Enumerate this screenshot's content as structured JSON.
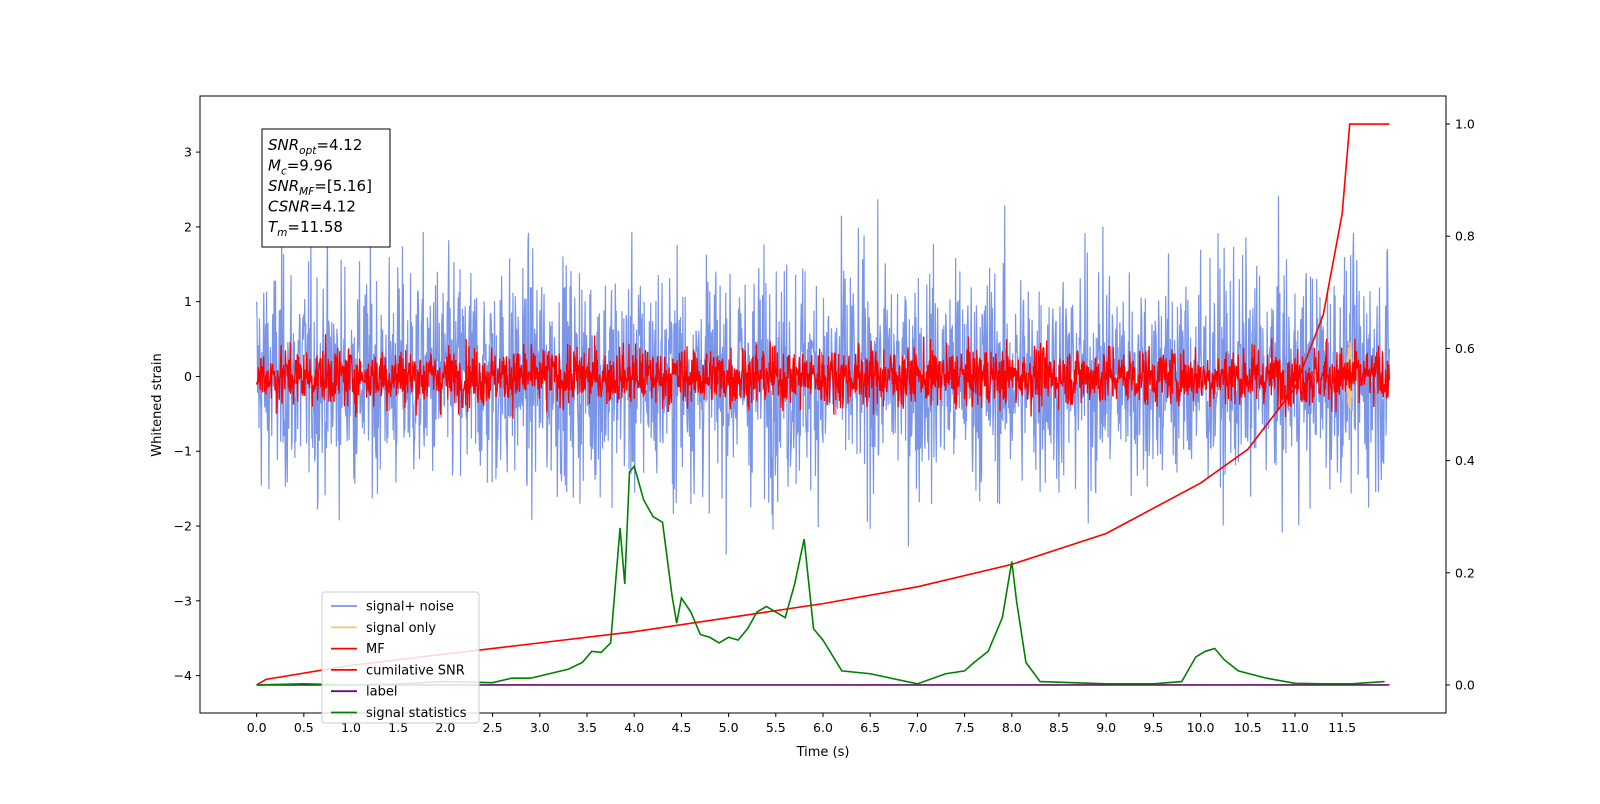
{
  "chart_data": {
    "type": "line",
    "xlabel": "Time (s)",
    "ylabel": "Whitened strain",
    "xlim": [
      -0.6,
      12.6
    ],
    "ylim": [
      -4.5,
      3.75
    ],
    "y2lim": [
      -0.05,
      1.05
    ],
    "x_ticks": [
      "0.0",
      "0.5",
      "1.0",
      "1.5",
      "2.0",
      "2.5",
      "3.0",
      "3.5",
      "4.0",
      "4.5",
      "5.0",
      "5.5",
      "6.0",
      "6.5",
      "7.0",
      "7.5",
      "8.0",
      "8.5",
      "9.0",
      "9.5",
      "10.0",
      "10.5",
      "11.0",
      "11.5"
    ],
    "y_ticks": [
      "3",
      "2",
      "1",
      "0",
      "−1",
      "−2",
      "−3",
      "−4"
    ],
    "y_tick_values": [
      3,
      2,
      1,
      0,
      -1,
      -2,
      -3,
      -4
    ],
    "y2_ticks": [
      "1.0",
      "0.8",
      "0.6",
      "0.4",
      "0.2",
      "0.0"
    ],
    "y2_tick_values": [
      1.0,
      0.8,
      0.6,
      0.4,
      0.2,
      0.0
    ],
    "grid": false,
    "legend_position": "lower-left",
    "annotation": [
      {
        "base": "SNR",
        "sub": "opt",
        "rest": "=4.12"
      },
      {
        "base": "M",
        "sub": "c",
        "rest": "=9.96"
      },
      {
        "base": "SNR",
        "sub": "MF",
        "rest": "=[5.16]"
      },
      {
        "base": "CSNR",
        "sub": "",
        "rest": "=4.12"
      },
      {
        "base": "T",
        "sub": "m",
        "rest": "=11.58"
      }
    ],
    "series": [
      {
        "name": "signal+ noise",
        "color": "#7b96e8",
        "axis": "left",
        "style": "noise",
        "x_range": [
          0.0,
          12.0
        ],
        "level": 0.0,
        "amplitude": 3.4
      },
      {
        "name": "signal only",
        "color": "#f5c97a",
        "axis": "left",
        "style": "chirp",
        "x_range": [
          11.5,
          11.6
        ],
        "peak_time": 11.58
      },
      {
        "name": "MF",
        "color": "#ff0000",
        "axis": "left",
        "style": "noise",
        "x_range": [
          0.0,
          12.0
        ],
        "level": 0.0,
        "amplitude": 0.9
      },
      {
        "name": "cumilative SNR",
        "color": "#ff0000",
        "axis": "right",
        "x": [
          0.0,
          0.1,
          1.0,
          2.0,
          3.0,
          4.0,
          5.0,
          6.0,
          7.0,
          8.0,
          9.0,
          10.0,
          10.5,
          11.0,
          11.3,
          11.5,
          11.58,
          12.0
        ],
        "y": [
          0.0,
          0.01,
          0.035,
          0.055,
          0.075,
          0.095,
          0.12,
          0.145,
          0.175,
          0.215,
          0.27,
          0.36,
          0.42,
          0.53,
          0.66,
          0.84,
          1.0,
          1.0
        ]
      },
      {
        "name": "label",
        "color": "#6a0a6a",
        "axis": "right",
        "x": [
          0.0,
          12.0
        ],
        "y": [
          0.0,
          0.0
        ]
      },
      {
        "name": "signal statistics",
        "color": "#008000",
        "axis": "right",
        "x": [
          0.0,
          0.5,
          1.0,
          1.5,
          2.0,
          2.5,
          2.7,
          2.9,
          3.1,
          3.3,
          3.45,
          3.55,
          3.65,
          3.75,
          3.85,
          3.9,
          3.95,
          4.0,
          4.1,
          4.2,
          4.3,
          4.4,
          4.45,
          4.5,
          4.6,
          4.7,
          4.8,
          4.9,
          5.0,
          5.1,
          5.2,
          5.3,
          5.4,
          5.5,
          5.6,
          5.7,
          5.8,
          5.85,
          5.9,
          6.0,
          6.2,
          6.5,
          7.0,
          7.3,
          7.5,
          7.6,
          7.75,
          7.9,
          8.0,
          8.05,
          8.15,
          8.3,
          9.0,
          9.5,
          9.8,
          9.95,
          10.05,
          10.15,
          10.25,
          10.4,
          10.7,
          11.0,
          11.3,
          11.6,
          11.95
        ],
        "y": [
          0.0,
          0.002,
          0.0,
          0.002,
          0.006,
          0.004,
          0.012,
          0.012,
          0.02,
          0.028,
          0.04,
          0.06,
          0.058,
          0.075,
          0.28,
          0.18,
          0.38,
          0.39,
          0.33,
          0.3,
          0.29,
          0.16,
          0.11,
          0.155,
          0.13,
          0.09,
          0.085,
          0.075,
          0.085,
          0.08,
          0.1,
          0.13,
          0.14,
          0.13,
          0.12,
          0.18,
          0.26,
          0.18,
          0.1,
          0.08,
          0.025,
          0.02,
          0.002,
          0.02,
          0.025,
          0.04,
          0.06,
          0.12,
          0.22,
          0.15,
          0.04,
          0.006,
          0.002,
          0.002,
          0.006,
          0.05,
          0.06,
          0.065,
          0.045,
          0.025,
          0.012,
          0.003,
          0.002,
          0.002,
          0.006
        ]
      }
    ]
  }
}
